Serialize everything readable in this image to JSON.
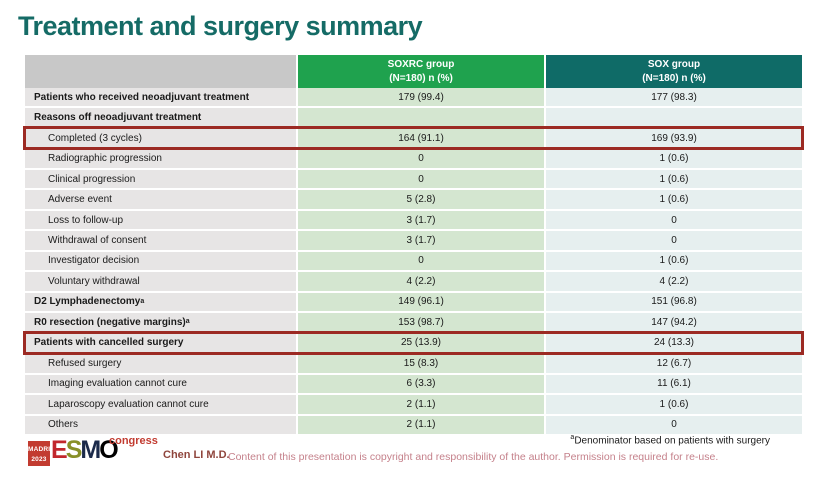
{
  "title": "Treatment and surgery summary",
  "table": {
    "header": {
      "soxrc_group": {
        "line1": "SOXRC group",
        "line2": "(N=180)  n (%)"
      },
      "sox_group": {
        "line1": "SOX group",
        "line2": "(N=180)  n (%)"
      }
    },
    "rows": [
      {
        "label": "Patients who received neoadjuvant treatment",
        "soxrc": "179 (99.4)",
        "sox": "177 (98.3)",
        "bold": true
      },
      {
        "label": "Reasons off neoadjuvant treatment",
        "soxrc": "",
        "sox": "",
        "bold": true
      },
      {
        "label": "Completed (3 cycles)",
        "soxrc": "164 (91.1)",
        "sox": "169 (93.9)",
        "indent": true,
        "highlight": true
      },
      {
        "label": "Radiographic progression",
        "soxrc": "0",
        "sox": "1 (0.6)",
        "indent": true
      },
      {
        "label": "Clinical progression",
        "soxrc": "0",
        "sox": "1 (0.6)",
        "indent": true
      },
      {
        "label": "Adverse event",
        "soxrc": "5 (2.8)",
        "sox": "1 (0.6)",
        "indent": true
      },
      {
        "label": "Loss to follow-up",
        "soxrc": "3 (1.7)",
        "sox": "0",
        "indent": true
      },
      {
        "label": "Withdrawal of consent",
        "soxrc": "3 (1.7)",
        "sox": "0",
        "indent": true
      },
      {
        "label": "Investigator decision",
        "soxrc": "0",
        "sox": "1 (0.6)",
        "indent": true
      },
      {
        "label": "Voluntary withdrawal",
        "soxrc": "4 (2.2)",
        "sox": "4 (2.2)",
        "indent": true
      },
      {
        "label": "D2 Lymphadenectomy",
        "sup": "a",
        "soxrc": "149 (96.1)",
        "sox": "151 (96.8)",
        "bold": true
      },
      {
        "label": "R0 resection (negative margins)",
        "sup": "a",
        "soxrc": "153 (98.7)",
        "sox": "147 (94.2)",
        "bold": true
      },
      {
        "label": "Patients with cancelled surgery",
        "soxrc": "25 (13.9)",
        "sox": "24 (13.3)",
        "bold": true,
        "highlight": true
      },
      {
        "label": "Refused surgery",
        "soxrc": "15 (8.3)",
        "sox": "12 (6.7)",
        "indent": true
      },
      {
        "label": "Imaging evaluation cannot cure",
        "soxrc": "6 (3.3)",
        "sox": "11 (6.1)",
        "indent": true
      },
      {
        "label": "Laparoscopy evaluation cannot cure",
        "soxrc": "2 (1.1)",
        "sox": "1 (0.6)",
        "indent": true
      },
      {
        "label": "Others",
        "soxrc": "2 (1.1)",
        "sox": "0",
        "indent": true
      }
    ]
  },
  "footer": {
    "logo": {
      "badge_line1": "MADRID",
      "badge_line2": "2023",
      "letter_e": "E",
      "letter_s": "S",
      "letter_m": "M",
      "letter_o": "O",
      "congress": "congress"
    },
    "author": "Chen LI M.D.",
    "footnote_sup": "a",
    "footnote_text": "Denominator based on patients with surgery",
    "copyright": "Content of this presentation is copyright and responsibility of the author. Permission is required for re-use."
  },
  "colors": {
    "title_teal": "#156B66",
    "header_green": "#1FA24E",
    "header_teal": "#0F6B67",
    "header_gray": "#C8C8C8",
    "col_label_bg": "#E7E5E5",
    "col_soxrc_bg": "#D4E6D0",
    "col_sox_bg": "#E6EFEF",
    "highlight_red": "#9C2A23",
    "copyright_rose": "#C5818B",
    "logo_red": "#C23B30"
  }
}
